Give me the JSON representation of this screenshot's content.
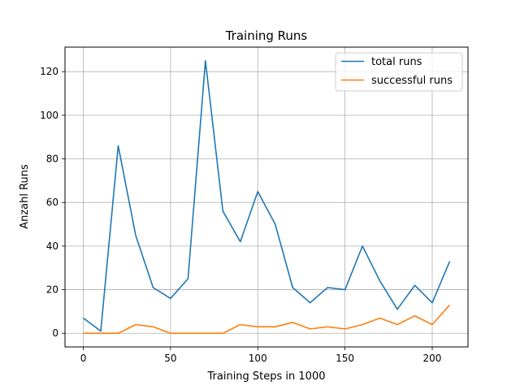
{
  "chart_data": {
    "type": "line",
    "title": "Training Runs",
    "xlabel": "Training Steps in 1000",
    "ylabel": "Anzahl Runs",
    "xlim": [
      -10.5,
      220.5
    ],
    "ylim": [
      -6.25,
      131.25
    ],
    "xticks": [
      0,
      50,
      100,
      150,
      200
    ],
    "yticks": [
      0,
      20,
      40,
      60,
      80,
      100,
      120
    ],
    "grid": true,
    "legend_position": "top-right",
    "x": [
      0,
      10,
      20,
      30,
      40,
      50,
      60,
      70,
      80,
      90,
      100,
      110,
      120,
      130,
      140,
      150,
      160,
      170,
      180,
      190,
      200,
      210
    ],
    "series": [
      {
        "name": "total runs",
        "color": "#1f77b4",
        "values": [
          7,
          1,
          86,
          45,
          21,
          16,
          25,
          125,
          56,
          42,
          65,
          50,
          21,
          14,
          21,
          20,
          40,
          24,
          11,
          22,
          14,
          33
        ]
      },
      {
        "name": "successful runs",
        "color": "#ff7f0e",
        "values": [
          0,
          0,
          0,
          4,
          3,
          0,
          0,
          0,
          0,
          4,
          3,
          3,
          5,
          2,
          3,
          2,
          4,
          7,
          4,
          8,
          4,
          13
        ]
      }
    ]
  }
}
